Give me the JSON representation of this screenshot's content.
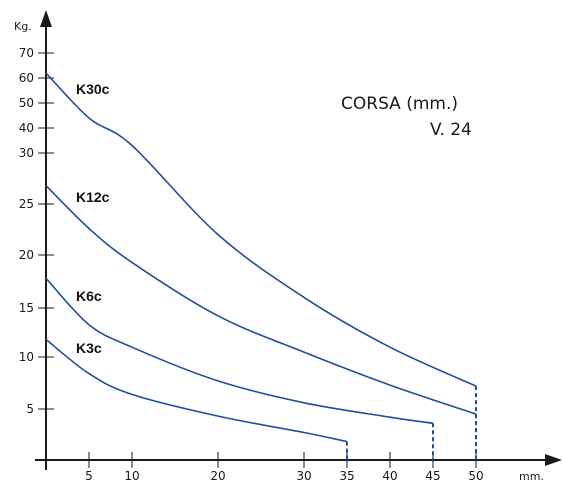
{
  "chart_data": {
    "type": "line",
    "title": "",
    "xlabel": "mm.",
    "ylabel": "Kg.",
    "annotation": {
      "line1": "CORSA (mm.)",
      "line2": "V. 24"
    },
    "x_ticks": [
      5,
      10,
      20,
      30,
      35,
      40,
      45,
      50
    ],
    "y_ticks": [
      5,
      10,
      15,
      20,
      25,
      30,
      40,
      50,
      60,
      70
    ],
    "grid": false,
    "series": [
      {
        "name": "K30c",
        "x": [
          0,
          5,
          10,
          20,
          30,
          40,
          50
        ],
        "y": [
          62,
          44,
          33,
          22,
          16,
          11,
          7.2
        ],
        "drop_to_zero": true
      },
      {
        "name": "K12c",
        "x": [
          0,
          5,
          10,
          20,
          30,
          40,
          50
        ],
        "y": [
          26.8,
          22.6,
          19.3,
          14.2,
          10.5,
          7.3,
          4.5
        ],
        "drop_to_zero": true
      },
      {
        "name": "K6c",
        "x": [
          0,
          5,
          10,
          20,
          30,
          40,
          45
        ],
        "y": [
          17.8,
          13.3,
          11.0,
          7.7,
          5.6,
          4.2,
          3.6
        ],
        "drop_to_zero": true
      },
      {
        "name": "K3c",
        "x": [
          0,
          5,
          10,
          20,
          30,
          35
        ],
        "y": [
          11.8,
          8.4,
          6.4,
          4.3,
          2.7,
          1.8
        ],
        "drop_to_zero": true
      }
    ]
  },
  "colors": {
    "series": "#1f4e9b",
    "axis": "#1a1a1a"
  }
}
